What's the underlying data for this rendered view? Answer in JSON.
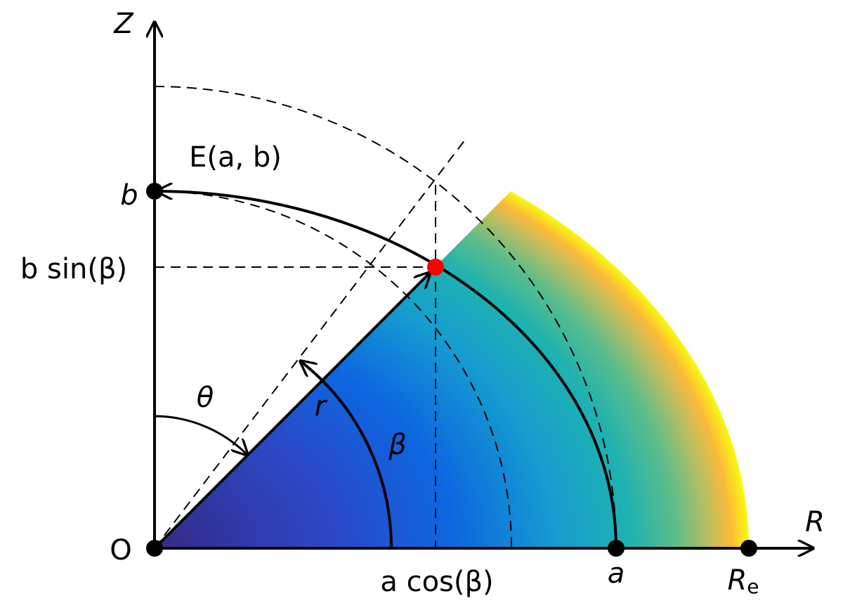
{
  "axes": {
    "z": "Z",
    "r": "R"
  },
  "labels": {
    "origin": "O",
    "b": "b",
    "b_sin_beta": "b sin(β)",
    "ellipse": "E(a, b)",
    "theta": "θ",
    "r": "r",
    "beta": "β",
    "a_cos_beta": "a cos(β)",
    "a": "a",
    "re": {
      "main": "R",
      "sub": "e"
    }
  }
}
